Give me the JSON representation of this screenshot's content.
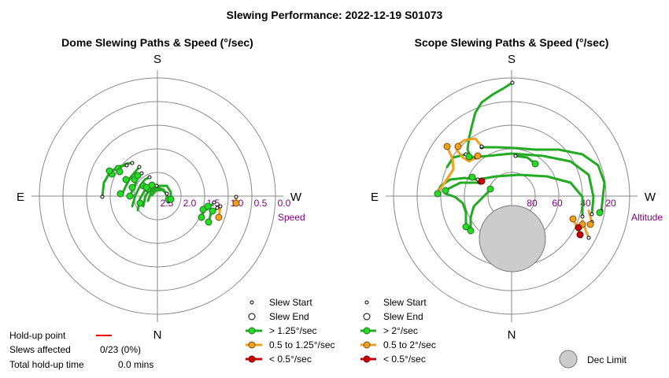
{
  "title": "Slewing Performance: 2022-12-19 S01073",
  "colors": {
    "fast": "#22aa22",
    "fast_fill": "#22dd22",
    "medium": "#f0a020",
    "slow": "#cc0000",
    "grid": "#888888",
    "label": "#800080",
    "dec_limit": "#cccccc"
  },
  "cardinals": {
    "top": "S",
    "bottom": "N",
    "left": "E",
    "right": "W"
  },
  "dome": {
    "title": "Dome Slewing Paths & Speed (°/sec)",
    "axis_name": "Speed",
    "ticks": [
      "2.5",
      "2.0",
      "1.5",
      "1.0",
      "0.5",
      "0.0"
    ],
    "legend": {
      "start": "Slew Start",
      "end": "Slew End",
      "fast": "> 1.25°/sec",
      "medium": "0.5 to 1.25°/sec",
      "slow": "< 0.5°/sec"
    }
  },
  "scope": {
    "title": "Scope Slewing Paths & Speed (°/sec)",
    "axis_name": "Altitude",
    "ticks": [
      "80",
      "60",
      "40",
      "20"
    ],
    "legend": {
      "start": "Slew Start",
      "end": "Slew End",
      "fast": "> 2°/sec",
      "medium": "0.5 to 2°/sec",
      "slow": "< 0.5°/sec",
      "dec_limit": "Dec Limit"
    }
  },
  "info": {
    "holdup_label": "Hold-up point",
    "slews_label": "Slews affected",
    "slews_value": "0/23 (0%)",
    "total_label": "Total hold-up time",
    "total_value": "0.0 mins"
  },
  "chart_data": [
    {
      "type": "scatter",
      "title": "Dome Slewing Paths & Speed (°/sec)",
      "radial_axis": "Speed",
      "radial_ticks": [
        2.5,
        2.0,
        1.5,
        1.0,
        0.5,
        0.0
      ],
      "series": [
        {
          "name": "> 1.25°/sec",
          "points": [
            [
              95,
              1.55
            ],
            [
              100,
              2.05
            ],
            [
              107,
              2.2
            ],
            [
              113,
              2.3
            ],
            [
              118,
              2.28
            ],
            [
              124,
              2.18
            ],
            [
              130,
              2.06
            ],
            [
              110,
              2.0
            ],
            [
              117,
              2.05
            ],
            [
              125,
              1.95
            ],
            [
              105,
              1.85
            ],
            [
              112,
              1.9
            ],
            [
              135,
              1.95
            ],
            [
              145,
              2.2
            ],
            [
              160,
              2.4
            ],
            [
              200,
              2.45
            ],
            [
              210,
              2.4
            ],
            [
              245,
              2.5
            ],
            [
              250,
              2.55
            ],
            [
              295,
              1.45
            ],
            [
              300,
              1.5
            ],
            [
              305,
              1.42
            ]
          ]
        },
        {
          "name": "0.5 to 1.25°/sec",
          "points": [
            [
              280,
              1.2
            ],
            [
              290,
              1.15
            ]
          ]
        }
      ]
    },
    {
      "type": "scatter",
      "title": "Scope Slewing Paths & Speed (°/sec)",
      "radial_axis": "Altitude",
      "radial_ticks": [
        80,
        60,
        40,
        20
      ],
      "series": [
        {
          "name": "> 2°/sec",
          "points": [
            [
              5,
              -20
            ],
            [
              65,
              22
            ],
            [
              75,
              28
            ],
            [
              80,
              25
            ],
            [
              95,
              10
            ],
            [
              100,
              12
            ],
            [
              118,
              32
            ],
            [
              125,
              52
            ],
            [
              180,
              82
            ],
            [
              230,
              40
            ],
            [
              270,
              28
            ],
            [
              295,
              14
            ],
            [
              315,
              30
            ],
            [
              340,
              38
            ]
          ]
        },
        {
          "name": "0.5 to 2°/sec",
          "points": [
            [
              60,
              15
            ],
            [
              68,
              12
            ],
            [
              75,
              18
            ],
            [
              280,
              26
            ],
            [
              290,
              24
            ],
            [
              292,
              30
            ],
            [
              300,
              32
            ]
          ]
        },
        {
          "name": "< 0.5°/sec",
          "points": [
            [
              100,
              50
            ],
            [
              120,
              57
            ],
            [
              310,
              35
            ],
            [
              315,
              36
            ]
          ]
        }
      ]
    }
  ]
}
